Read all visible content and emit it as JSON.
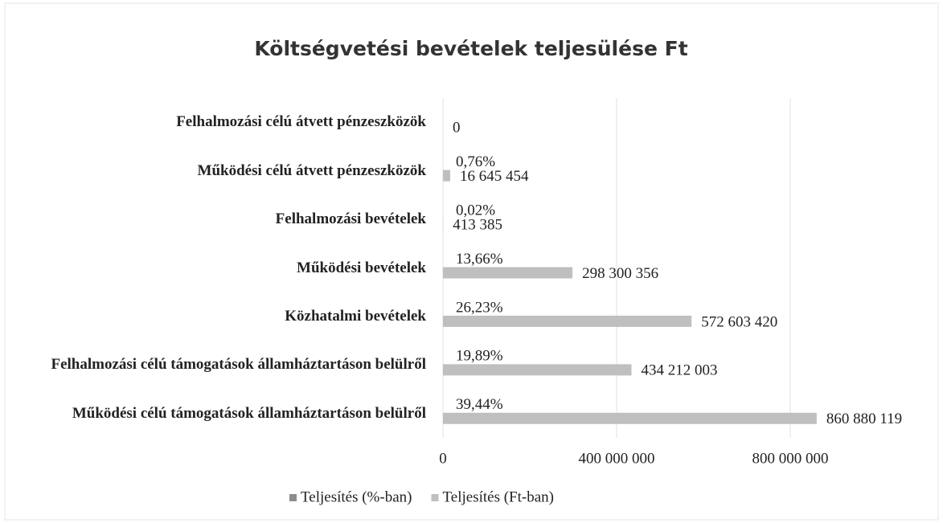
{
  "chart_data": {
    "type": "bar",
    "orientation": "horizontal",
    "title": "Költségvetési bevételek teljesülése Ft",
    "categories": [
      "Felhalmozási célú átvett pénzeszközök",
      "Működési célú átvett pénzeszközök",
      "Felhalmozási bevételek",
      "Működési bevételek",
      "Közhatalmi bevételek",
      "Felhalmozási célú támogatások államháztartáson belülről",
      "Működési célú támogatások államháztartáson belülről"
    ],
    "series": [
      {
        "name": "Teljesítés (%-ban)",
        "color": "#8c8c8c",
        "values": [
          null,
          0.76,
          0.02,
          13.66,
          26.23,
          19.89,
          39.44
        ],
        "value_labels": [
          null,
          "0,76%",
          "0,02%",
          "13,66%",
          "26,23%",
          "19,89%",
          "39,44%"
        ]
      },
      {
        "name": "Teljesítés (Ft-ban)",
        "color": "#bfbfbf",
        "values": [
          0,
          16645454,
          413385,
          298300356,
          572603420,
          434212003,
          860880119
        ],
        "value_labels": [
          "0",
          "16 645 454",
          "413 385",
          "298 300 356",
          "572 603 420",
          "434 212 003",
          "860 880 119"
        ]
      }
    ],
    "xlim": [
      0,
      1100000000
    ],
    "xticks": [
      0,
      {
        "value": 400000000,
        "label": "400 000 000"
      },
      {
        "value": 800000000,
        "label": "800 000 000"
      }
    ],
    "grid": true,
    "legend": "bottom"
  }
}
